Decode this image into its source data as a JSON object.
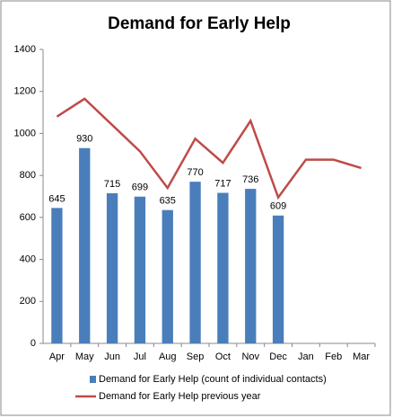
{
  "chart_data": {
    "type": "bar",
    "title": "Demand for Early Help",
    "categories": [
      "Apr",
      "May",
      "Jun",
      "Jul",
      "Aug",
      "Sep",
      "Oct",
      "Nov",
      "Dec",
      "Jan",
      "Feb",
      "Mar"
    ],
    "series": [
      {
        "name": "Demand for Early Help (count of individual contacts)",
        "type": "bar",
        "color": "#4a7ebb",
        "values": [
          645,
          930,
          715,
          699,
          635,
          770,
          717,
          736,
          609,
          null,
          null,
          null
        ]
      },
      {
        "name": "Demand for Early Help previous year",
        "type": "line",
        "color": "#be4b48",
        "values": [
          1080,
          1165,
          1040,
          915,
          740,
          975,
          860,
          1060,
          695,
          875,
          875,
          835
        ]
      }
    ],
    "ylim": [
      0,
      1400
    ],
    "yticks": [
      0,
      200,
      400,
      600,
      800,
      1000,
      1200,
      1400
    ],
    "grid": false
  }
}
